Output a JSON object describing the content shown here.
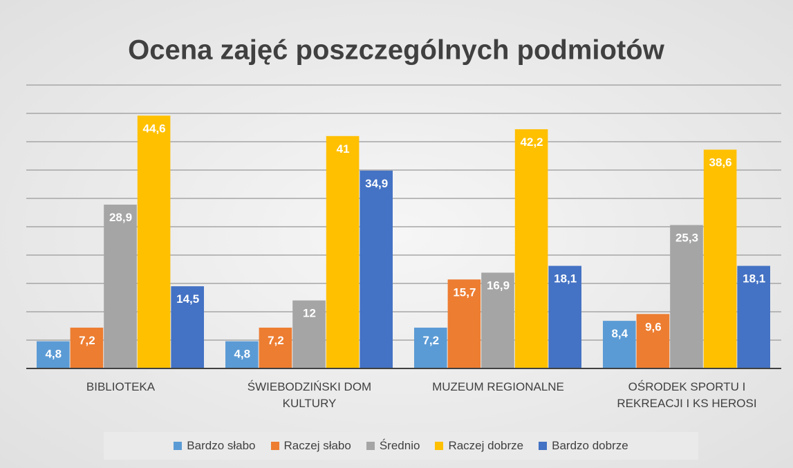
{
  "chart_data": {
    "type": "bar",
    "title": "Ocena zajęć poszczególnych podmiotów",
    "categories": [
      "BIBLIOTEKA",
      "ŚWIEBODZIŃSKI DOM KULTURY",
      "MUZEUM REGIONALNE",
      "OŚRODEK SPORTU I REKREACJI I KS HEROSI"
    ],
    "series": [
      {
        "name": "Bardzo słabo",
        "color": "#5B9BD5",
        "values": [
          4.8,
          4.8,
          7.2,
          8.4
        ],
        "value_labels": [
          "4,8",
          "4,8",
          "7,2",
          "8,4"
        ]
      },
      {
        "name": "Raczej słabo",
        "color": "#ED7D31",
        "values": [
          7.2,
          7.2,
          15.7,
          9.6
        ],
        "value_labels": [
          "7,2",
          "7,2",
          "15,7",
          "9,6"
        ]
      },
      {
        "name": "Średnio",
        "color": "#A5A5A5",
        "values": [
          28.9,
          12,
          16.9,
          25.3
        ],
        "value_labels": [
          "28,9",
          "12",
          "16,9",
          "25,3"
        ]
      },
      {
        "name": "Raczej dobrze",
        "color": "#FFC000",
        "values": [
          44.6,
          41,
          42.2,
          38.6
        ],
        "value_labels": [
          "44,6",
          "41",
          "42,2",
          "38,6"
        ]
      },
      {
        "name": "Bardzo dobrze",
        "color": "#4472C4",
        "values": [
          14.5,
          34.9,
          18.1,
          18.1
        ],
        "value_labels": [
          "14,5",
          "34,9",
          "18,1",
          "18,1"
        ]
      }
    ],
    "ylim": [
      0,
      50
    ],
    "yticks": [
      0,
      5,
      10,
      15,
      20,
      25,
      30,
      35,
      40,
      45,
      50
    ],
    "grid": true,
    "legend": "bottom"
  }
}
